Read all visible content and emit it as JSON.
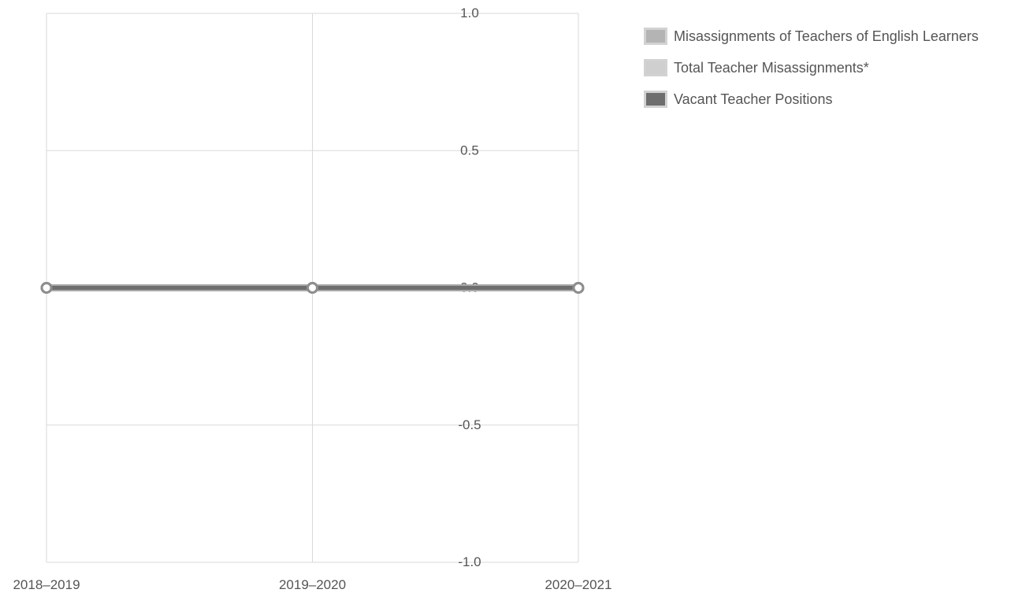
{
  "chart_data": {
    "type": "line",
    "categories": [
      "2018–2019",
      "2019–2020",
      "2020–2021"
    ],
    "series": [
      {
        "name": "Misassignments of Teachers of English Learners",
        "values": [
          0,
          0,
          0
        ],
        "color": "#b4b4b4"
      },
      {
        "name": "Total Teacher Misassignments*",
        "values": [
          0,
          0,
          0
        ],
        "color": "#cfcfcf"
      },
      {
        "name": "Vacant Teacher Positions",
        "values": [
          0,
          0,
          0
        ],
        "color": "#6e6e6e"
      }
    ],
    "yticks": [
      "1.0",
      "0.5",
      "0.0",
      "-0.5",
      "-1.0"
    ],
    "ytick_values": [
      1.0,
      0.5,
      0.0,
      -0.5,
      -1.0
    ],
    "ylim": [
      -1.0,
      1.0
    ],
    "grid": true,
    "legend_position": "top-right",
    "title": "",
    "xlabel": "",
    "ylabel": ""
  }
}
